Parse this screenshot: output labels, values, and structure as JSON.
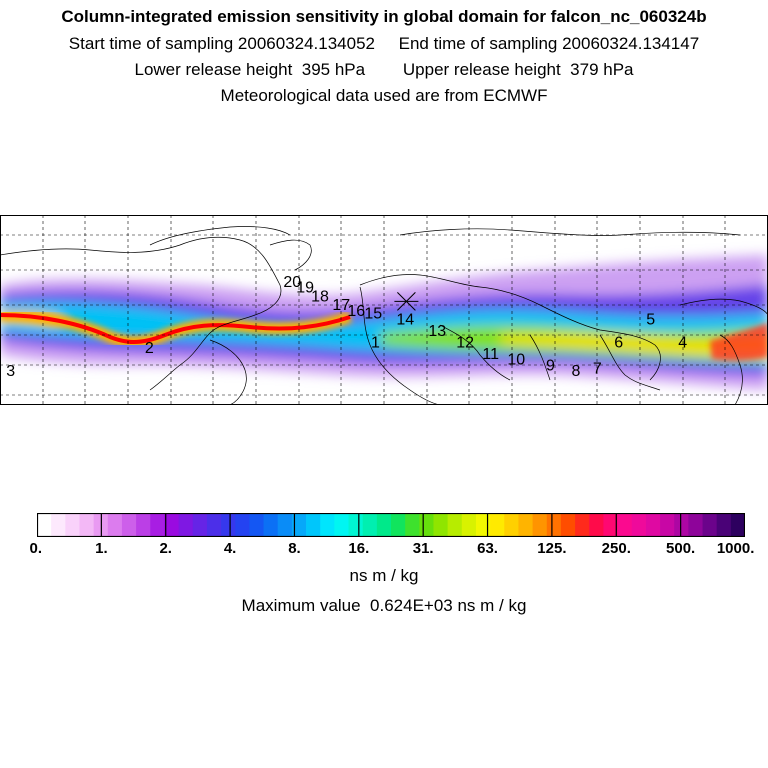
{
  "header": {
    "title": "Column-integrated emission sensitivity in global domain for falcon_nc_060324b",
    "line2": "Start time of sampling 20060324.134052     End time of sampling 20060324.134147",
    "line3": "Lower release height  395 hPa        Upper release height  379 hPa",
    "line4": "Meteorological data used are from ECMWF"
  },
  "map": {
    "plume_points": [
      {
        "label": "1",
        "lon": -4,
        "lat": 32
      },
      {
        "label": "2",
        "lon": -110,
        "lat": 30
      },
      {
        "label": "3",
        "lon": -175,
        "lat": 22
      },
      {
        "label": "4",
        "lon": 140,
        "lat": 32
      },
      {
        "label": "5",
        "lon": 125,
        "lat": 40
      },
      {
        "label": "6",
        "lon": 110,
        "lat": 32
      },
      {
        "label": "7",
        "lon": 100,
        "lat": 23
      },
      {
        "label": "8",
        "lon": 90,
        "lat": 22
      },
      {
        "label": "9",
        "lon": 78,
        "lat": 24
      },
      {
        "label": "10",
        "lon": 62,
        "lat": 26
      },
      {
        "label": "11",
        "lon": 50,
        "lat": 28
      },
      {
        "label": "12",
        "lon": 38,
        "lat": 32
      },
      {
        "label": "13",
        "lon": 25,
        "lat": 36
      },
      {
        "label": "14",
        "lon": 10,
        "lat": 40
      },
      {
        "label": "15",
        "lon": -5,
        "lat": 42
      },
      {
        "label": "16",
        "lon": -13,
        "lat": 43
      },
      {
        "label": "17",
        "lon": -20,
        "lat": 45
      },
      {
        "label": "18",
        "lon": -30,
        "lat": 48
      },
      {
        "label": "19",
        "lon": -37,
        "lat": 51
      },
      {
        "label": "20",
        "lon": -43,
        "lat": 53
      }
    ],
    "release_site": {
      "lon": 10.5,
      "lat": 48
    },
    "colors": {
      "coast": "#000000",
      "grid": "#000000",
      "plume_core": "#ff0000"
    }
  },
  "colorbar": {
    "colors": [
      "#ffffff",
      "#fde9fd",
      "#f9d2fa",
      "#f3b8f6",
      "#e99af2",
      "#dc7cee",
      "#cd5fea",
      "#bb3fe6",
      "#a81ee3",
      "#9a0be0",
      "#7f18e3",
      "#6624e6",
      "#4c2fe9",
      "#3638ed",
      "#2443f1",
      "#1457f3",
      "#0b70f5",
      "#0a8cf7",
      "#06a8f9",
      "#00c6fb",
      "#00e5fd",
      "#00f6f2",
      "#00f5d2",
      "#00efb0",
      "#00e98a",
      "#11e45d",
      "#3ee12d",
      "#66e00c",
      "#8fe500",
      "#b7ec00",
      "#d8f200",
      "#f2f800",
      "#ffea00",
      "#ffd000",
      "#ffb400",
      "#ff9400",
      "#ff7200",
      "#ff4d00",
      "#ff2a1c",
      "#ff0b4a",
      "#ff0872",
      "#fb0a8f",
      "#ef0a9b",
      "#df09a2",
      "#c807a5",
      "#ad06a3",
      "#8e049a",
      "#6b038b",
      "#4a0277",
      "#2d005f"
    ],
    "ticks": [
      "0.",
      "1.",
      "2.",
      "4.",
      "8.",
      "16.",
      "31.",
      "63.",
      "125.",
      "250.",
      "500.",
      "1000."
    ],
    "unit": "ns m / kg",
    "max_value": "Maximum value  0.624E+03 ns m / kg"
  }
}
